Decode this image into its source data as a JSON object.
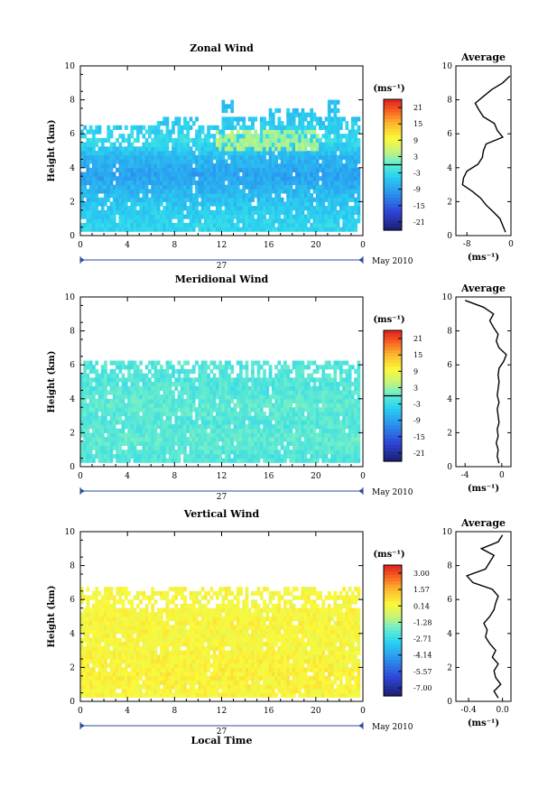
{
  "chart_data": [
    {
      "type": "heatmap",
      "title": "Zonal Wind",
      "ylabel": "Height (km)",
      "xlabel": "",
      "x_ticks": [
        "0",
        "4",
        "8",
        "12",
        "16",
        "20",
        "0"
      ],
      "y_ticks": [
        "0",
        "2",
        "4",
        "6",
        "8",
        "10"
      ],
      "xlim": [
        0,
        24
      ],
      "ylim": [
        0,
        10
      ],
      "date_label": "27",
      "month_label": "May 2010",
      "colorbar": {
        "unit": "(ms⁻¹)",
        "labels": [
          "21",
          "15",
          "9",
          "3",
          "-3",
          "-9",
          "-15",
          "-21"
        ],
        "range": [
          -24,
          24
        ]
      },
      "data_top_km": [
        6.5,
        6.5,
        6.4,
        6.3,
        6.4,
        6.5,
        6.7,
        6.8,
        6.9,
        6.9,
        6.5,
        6.5,
        8.0,
        7.0,
        7.0,
        7.0,
        7.5,
        7.5,
        7.5,
        7.5,
        7.0,
        8.0,
        7.0,
        7.0
      ],
      "field_profile_km": [
        0.5,
        1.5,
        2.5,
        3.5,
        4.5,
        5.5,
        6.5,
        7.5,
        8.5,
        9.5
      ],
      "field_profile_value": [
        -4,
        -5,
        -7,
        -9,
        -7,
        -3,
        -5,
        -6,
        -6,
        -5
      ],
      "positive_region": {
        "x": [
          11.5,
          20
        ],
        "y": [
          4.8,
          6.1
        ]
      },
      "average": {
        "title": "Average",
        "xlabel": "(ms⁻¹)",
        "x_ticks": [
          "-8",
          "0"
        ],
        "xlim": [
          -10,
          0
        ],
        "height_km": [
          0.2,
          0.6,
          1,
          1.4,
          1.8,
          2.2,
          2.6,
          3,
          3.4,
          3.8,
          4.2,
          4.6,
          5,
          5.4,
          5.8,
          6.2,
          6.6,
          7,
          7.4,
          7.8,
          8.2,
          8.6,
          9,
          9.4
        ],
        "speed": [
          -1.0,
          -1.5,
          -2.0,
          -3.2,
          -4.5,
          -5.5,
          -7.0,
          -8.8,
          -8.6,
          -8.0,
          -6.0,
          -5.2,
          -5.0,
          -4.5,
          -1.5,
          -2.5,
          -3.0,
          -5.0,
          -5.8,
          -6.5,
          -5.0,
          -3.5,
          -1.5,
          -0.2
        ]
      }
    },
    {
      "type": "heatmap",
      "title": "Meridional Wind",
      "ylabel": "Height (km)",
      "xlabel": "",
      "x_ticks": [
        "0",
        "4",
        "8",
        "12",
        "16",
        "20",
        "0"
      ],
      "y_ticks": [
        "0",
        "2",
        "4",
        "6",
        "8",
        "10"
      ],
      "xlim": [
        0,
        24
      ],
      "ylim": [
        0,
        10
      ],
      "date_label": "27",
      "month_label": "May 2010",
      "colorbar": {
        "unit": "(ms⁻¹)",
        "labels": [
          "21",
          "15",
          "9",
          "3",
          "-3",
          "-9",
          "-15",
          "-21"
        ],
        "range": [
          -24,
          24
        ]
      },
      "data_top_km": [
        6.2,
        6.2,
        6.2,
        6.2,
        6.2,
        6.2,
        6.2,
        6.2,
        6.2,
        6.2,
        6.2,
        6.2,
        6.2,
        6.2,
        6.2,
        6.2,
        6.2,
        6.2,
        6.2,
        6.2,
        6.2,
        6.2,
        6.2,
        6.2
      ],
      "field_profile_km": [
        0.5,
        1.5,
        2.5,
        3.5,
        4.5,
        5.5,
        6.5,
        7.5,
        8.5,
        9.5
      ],
      "field_profile_value": [
        -1,
        0,
        -1,
        0,
        -1,
        -1,
        -1,
        -1,
        -1,
        -1
      ],
      "average": {
        "title": "Average",
        "xlabel": "(ms⁻¹)",
        "x_ticks": [
          "-4",
          "0"
        ],
        "xlim": [
          -5,
          1
        ],
        "height_km": [
          0.2,
          0.6,
          1,
          1.4,
          1.8,
          2.2,
          2.6,
          3,
          3.4,
          3.8,
          4.2,
          4.6,
          5,
          5.4,
          5.8,
          6.2,
          6.6,
          7,
          7.4,
          7.8,
          8.2,
          8.6,
          9,
          9.4,
          9.8
        ],
        "speed": [
          -0.3,
          -0.5,
          -0.4,
          -0.6,
          -0.4,
          -0.5,
          -0.3,
          -0.4,
          -0.5,
          -0.3,
          -0.5,
          -0.4,
          -0.3,
          -0.4,
          -0.3,
          0.2,
          0.5,
          -0.3,
          -0.6,
          -0.4,
          -0.9,
          -1.3,
          -0.9,
          -2.0,
          -4.0
        ]
      }
    },
    {
      "type": "heatmap",
      "title": "Vertical Wind",
      "ylabel": "Height (km)",
      "xlabel": "Local Time",
      "x_ticks": [
        "0",
        "4",
        "8",
        "12",
        "16",
        "20",
        "0"
      ],
      "y_ticks": [
        "0",
        "2",
        "4",
        "6",
        "8",
        "10"
      ],
      "xlim": [
        0,
        24
      ],
      "ylim": [
        0,
        10
      ],
      "date_label": "27",
      "month_label": "May 2010",
      "colorbar": {
        "unit": "(ms⁻¹)",
        "labels": [
          "3.00",
          "1.57",
          "0.14",
          "-1.28",
          "-2.71",
          "-4.14",
          "-5.57",
          "-7.00"
        ],
        "range": [
          -7.7,
          3.7
        ]
      },
      "data_top_km": [
        6.6,
        6.6,
        6.7,
        6.6,
        6.5,
        6.5,
        6.6,
        6.6,
        6.6,
        6.5,
        6.6,
        6.6,
        6.7,
        6.6,
        6.6,
        6.6,
        6.5,
        6.6,
        6.6,
        6.6,
        6.5,
        6.6,
        6.6,
        6.6
      ],
      "field_profile_km": [
        0.5,
        1.5,
        2.5,
        3.5,
        4.5,
        5.5,
        6.5,
        7.5,
        8.5,
        9.5
      ],
      "field_profile_value": [
        0.3,
        0.4,
        0.3,
        0.2,
        0.3,
        0.2,
        0.2,
        0.2,
        0.2,
        0.2
      ],
      "average": {
        "title": "Average",
        "xlabel": "(ms⁻¹)",
        "x_ticks": [
          "-0.4",
          "0.0"
        ],
        "xlim": [
          -0.55,
          0.1
        ],
        "height_km": [
          0.2,
          0.6,
          1,
          1.4,
          1.8,
          2.2,
          2.6,
          3,
          3.4,
          3.8,
          4.2,
          4.6,
          5,
          5.4,
          5.8,
          6.2,
          6.6,
          7,
          7.4,
          7.8,
          8.2,
          8.6,
          9,
          9.4,
          9.8
        ],
        "speed": [
          -0.05,
          -0.1,
          -0.02,
          -0.08,
          -0.1,
          -0.05,
          -0.12,
          -0.08,
          -0.15,
          -0.2,
          -0.18,
          -0.22,
          -0.15,
          -0.1,
          -0.08,
          -0.05,
          -0.12,
          -0.35,
          -0.42,
          -0.2,
          -0.15,
          -0.1,
          -0.25,
          -0.05,
          0.0
        ]
      }
    }
  ]
}
